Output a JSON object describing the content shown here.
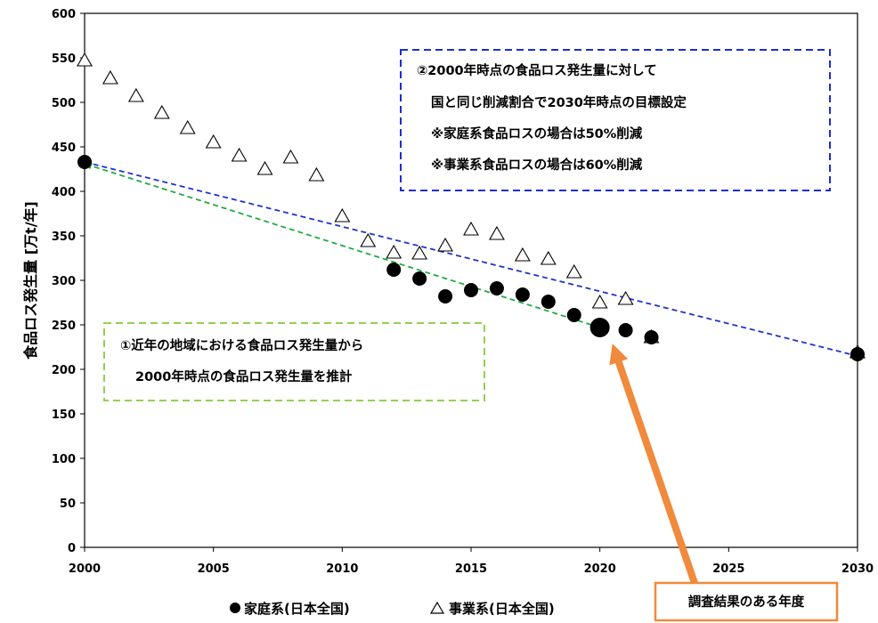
{
  "chart_data": {
    "type": "scatter",
    "ylabel": "食品ロス発生量 [万t/年]",
    "xlim": [
      2000,
      2030
    ],
    "ylim": [
      0,
      600
    ],
    "x_ticks": [
      2000,
      2005,
      2010,
      2015,
      2020,
      2025,
      2030
    ],
    "y_ticks": [
      0,
      50,
      100,
      150,
      200,
      250,
      300,
      350,
      400,
      450,
      500,
      550,
      600
    ],
    "grid": false,
    "series": [
      {
        "name": "家庭系(日本全国)",
        "marker": "filled-circle",
        "color": "#000000",
        "points": [
          {
            "x": 2000,
            "y": 433
          },
          {
            "x": 2012,
            "y": 312
          },
          {
            "x": 2013,
            "y": 302
          },
          {
            "x": 2014,
            "y": 282
          },
          {
            "x": 2015,
            "y": 289
          },
          {
            "x": 2016,
            "y": 291
          },
          {
            "x": 2017,
            "y": 284
          },
          {
            "x": 2018,
            "y": 276
          },
          {
            "x": 2019,
            "y": 261
          },
          {
            "x": 2020,
            "y": 247,
            "highlight": true
          },
          {
            "x": 2021,
            "y": 244
          },
          {
            "x": 2022,
            "y": 236
          },
          {
            "x": 2030,
            "y": 217
          }
        ]
      },
      {
        "name": "事業系(日本全国)",
        "marker": "open-triangle",
        "color": "#000000",
        "points": [
          {
            "x": 2000,
            "y": 547
          },
          {
            "x": 2001,
            "y": 527
          },
          {
            "x": 2002,
            "y": 507
          },
          {
            "x": 2003,
            "y": 488
          },
          {
            "x": 2004,
            "y": 471
          },
          {
            "x": 2005,
            "y": 455
          },
          {
            "x": 2006,
            "y": 440
          },
          {
            "x": 2007,
            "y": 425
          },
          {
            "x": 2008,
            "y": 438
          },
          {
            "x": 2009,
            "y": 418
          },
          {
            "x": 2010,
            "y": 372
          },
          {
            "x": 2011,
            "y": 344
          },
          {
            "x": 2012,
            "y": 331
          },
          {
            "x": 2013,
            "y": 330
          },
          {
            "x": 2014,
            "y": 339
          },
          {
            "x": 2015,
            "y": 357
          },
          {
            "x": 2016,
            "y": 352
          },
          {
            "x": 2017,
            "y": 328
          },
          {
            "x": 2018,
            "y": 324
          },
          {
            "x": 2019,
            "y": 309
          },
          {
            "x": 2020,
            "y": 275
          },
          {
            "x": 2021,
            "y": 279
          },
          {
            "x": 2022,
            "y": 236
          },
          {
            "x": 2030,
            "y": 219
          }
        ]
      }
    ],
    "trend_lines": [
      {
        "from": {
          "x": 2000,
          "y": 433
        },
        "to": {
          "x": 2030,
          "y": 215
        },
        "color": "#2233cc",
        "style": "dashed"
      },
      {
        "from": {
          "x": 2020,
          "y": 247
        },
        "to": {
          "x": 2000,
          "y": 431
        },
        "color": "#22aa44",
        "style": "dashed"
      }
    ],
    "legend_position": "bottom",
    "annotations": [
      {
        "id": "target",
        "lines": [
          "②2000年時点の食品ロス発生量に対して",
          "国と同じ削減割合で2030年時点の目標設定",
          "※家庭系食品ロスの場合は50%削減",
          "※事業系食品ロスの場合は60%削減"
        ],
        "border_color": "#1a2fd0"
      },
      {
        "id": "estimate",
        "lines": [
          "①近年の地域における食品ロス発生量から",
          "2000年時点の食品ロス発生量を推計"
        ],
        "border_color": "#92d050"
      }
    ],
    "callout": {
      "text": "調査結果のある年度",
      "target": {
        "x": 2020,
        "y": 247
      },
      "color": "#f08a3c"
    }
  }
}
